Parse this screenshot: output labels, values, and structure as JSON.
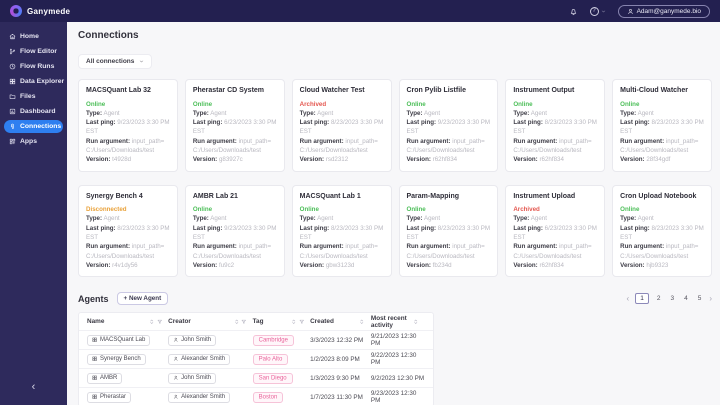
{
  "colors": {
    "accent_blue": "#2E7FF0",
    "status_online": "#4CBE58",
    "status_archived": "#E4574F",
    "status_disconnected": "#E9A23B",
    "tag_pink": "#E9639A"
  },
  "topbar": {
    "brand": "Ganymede",
    "help_glyph": "?",
    "user_email": "Adam@ganymede.bio"
  },
  "sidebar": {
    "items": [
      {
        "label": "Home",
        "icon": "home-icon",
        "active": false
      },
      {
        "label": "Flow Editor",
        "icon": "flow-editor-icon",
        "active": false
      },
      {
        "label": "Flow Runs",
        "icon": "flow-runs-icon",
        "active": false
      },
      {
        "label": "Data Explorer",
        "icon": "data-explorer-icon",
        "active": false
      },
      {
        "label": "Files",
        "icon": "files-icon",
        "active": false
      },
      {
        "label": "Dashboard",
        "icon": "dashboard-icon",
        "active": false
      },
      {
        "label": "Connections",
        "icon": "connections-icon",
        "active": true
      },
      {
        "label": "Apps",
        "icon": "apps-icon",
        "active": false
      }
    ],
    "collapse_glyph": "‹"
  },
  "connections": {
    "title": "Connections",
    "filter_label": "All connections",
    "field_labels": {
      "type": "Type:",
      "last_ping": "Last ping:",
      "run_argument": "Run argument:",
      "version": "Version:"
    },
    "cards": [
      {
        "title": "MACSQuant Lab 32",
        "status": "Online",
        "type": "Agent",
        "last_ping": "9/23/2023 3:30 PM EST",
        "run_argument": "input_path=C:/Users/Downloads/test",
        "version": "t4928d"
      },
      {
        "title": "Pherastar CD System",
        "status": "Online",
        "type": "Agent",
        "last_ping": "6/23/2023 3:30 PM EST",
        "run_argument": "input_path=C:/Users/Downloads/test",
        "version": "g83927c"
      },
      {
        "title": "Cloud Watcher Test",
        "status": "Archived",
        "type": "Agent",
        "last_ping": "8/23/2023 3:30 PM EST",
        "run_argument": "input_path=C:/Users/Downloads/test",
        "version": "rsd2312"
      },
      {
        "title": "Cron Pylib Listfile",
        "status": "Online",
        "type": "Agent",
        "last_ping": "9/23/2023 3:30 PM EST",
        "run_argument": "input_path=C:/Users/Downloads/test",
        "version": "r62hf834"
      },
      {
        "title": "Instrument Output",
        "status": "Online",
        "type": "Agent",
        "last_ping": "8/23/2023 3:30 PM EST",
        "run_argument": "input_path=C:/Users/Downloads/test",
        "version": "r62hf834"
      },
      {
        "title": "Multi-Cloud Watcher",
        "status": "Online",
        "type": "Agent",
        "last_ping": "8/23/2023 3:30 PM EST",
        "run_argument": "input_path=C:/Users/Downloads/test",
        "version": "28f34gdf"
      },
      {
        "title": "Synergy Bench 4",
        "status": "Disconnected",
        "type": "Agent",
        "last_ping": "8/23/2023 3:30 PM EST",
        "run_argument": "input_path=C:/Users/Downloads/test",
        "version": "r4v1dy56"
      },
      {
        "title": "AMBR Lab 21",
        "status": "Online",
        "type": "Agent",
        "last_ping": "9/23/2023 3:30 PM EST",
        "run_argument": "input_path=C:/Users/Downloads/test",
        "version": "fu9c2"
      },
      {
        "title": "MACSQuant Lab 1",
        "status": "Online",
        "type": "Agent",
        "last_ping": "8/23/2023 3:30 PM EST",
        "run_argument": "input_path=C:/Users/Downloads/test",
        "version": "gbw3123d"
      },
      {
        "title": "Param-Mapping",
        "status": "Online",
        "type": "Agent",
        "last_ping": "8/23/2023 3:30 PM EST",
        "run_argument": "input_path=C:/Users/Downloads/test",
        "version": "fb234d"
      },
      {
        "title": "Instrument Upload",
        "status": "Archived",
        "type": "Agent",
        "last_ping": "6/23/2023 3:30 PM EST",
        "run_argument": "input_path=C:/Users/Downloads/test",
        "version": "r62hf834"
      },
      {
        "title": "Cron Upload Notebook",
        "status": "Online",
        "type": "Agent",
        "last_ping": "8/23/2023 3:30 PM EST",
        "run_argument": "input_path=C:/Users/Downloads/test",
        "version": "hjb9323"
      }
    ]
  },
  "agents": {
    "title": "Agents",
    "new_agent_label": "+ New Agent",
    "pagination": {
      "prev_glyph": "‹",
      "next_glyph": "›",
      "pages": [
        "1",
        "2",
        "3",
        "4",
        "5"
      ],
      "active_page": "1"
    },
    "table": {
      "columns": [
        {
          "label": "Name",
          "sortable": true,
          "filterable": true
        },
        {
          "label": "Creator",
          "sortable": true,
          "filterable": true
        },
        {
          "label": "Tag",
          "sortable": true,
          "filterable": true
        },
        {
          "label": "Created",
          "sortable": true,
          "filterable": false
        },
        {
          "label": "Most recent activity",
          "sortable": true,
          "filterable": false
        }
      ],
      "rows": [
        {
          "name": "MACSQuant Lab",
          "creator": "John Smith",
          "tag": "Cambridge",
          "created": "3/3/2023 12:32 PM",
          "recent_activity": "9/21/2023 12:30 PM"
        },
        {
          "name": "Synergy Bench",
          "creator": "Alexander Smith",
          "tag": "Palo Alto",
          "created": "1/2/2023 8:09 PM",
          "recent_activity": "9/22/2023 12:30 PM"
        },
        {
          "name": "AMBR",
          "creator": "John Smith",
          "tag": "San Diego",
          "created": "1/3/2023 9:30 PM",
          "recent_activity": "9/2/2023 12:30 PM"
        },
        {
          "name": "Pherastar",
          "creator": "Alexander Smith",
          "tag": "Boston",
          "created": "1/7/2023 11:30 PM",
          "recent_activity": "9/23/2023 12:30 PM"
        }
      ]
    }
  }
}
